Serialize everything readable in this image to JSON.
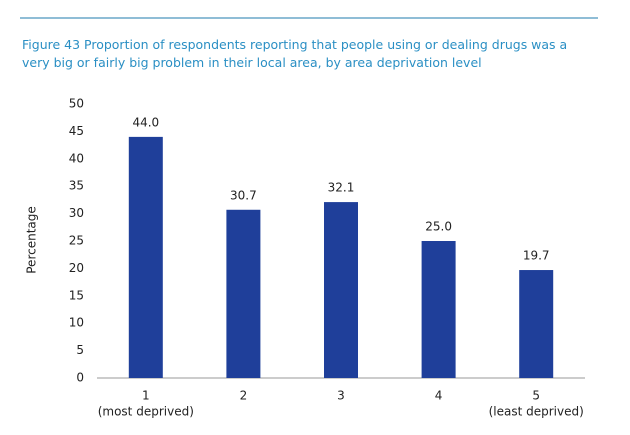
{
  "chart_data": {
    "type": "bar",
    "title": "Figure 43 Proportion of respondents reporting that people using or dealing drugs was a very big or fairly big problem in their local area, by area deprivation level",
    "ylabel": "Percentage",
    "categories": [
      "1",
      "2",
      "3",
      "4",
      "5"
    ],
    "category_notes": [
      "(most deprived)",
      null,
      null,
      null,
      "(least deprived)"
    ],
    "values": [
      44.0,
      30.7,
      32.1,
      25.0,
      19.7
    ],
    "value_labels": [
      "44.0",
      "30.7",
      "32.1",
      "25.0",
      "19.7"
    ],
    "color": "#1f3f9a",
    "ylim": [
      0,
      50
    ],
    "yticks": [
      0,
      5,
      10,
      15,
      20,
      25,
      30,
      35,
      40,
      45,
      50
    ],
    "grid": false
  }
}
